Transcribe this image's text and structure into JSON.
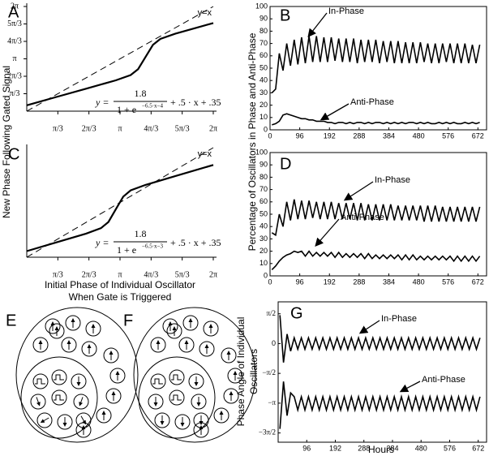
{
  "chart_data": [
    {
      "type": "line",
      "label": "A",
      "ylabel": "New Phase Following Gated Signal",
      "xlim": [
        0,
        6.2832
      ],
      "ylim": [
        0,
        6.2832
      ],
      "xticks": [
        {
          "value": 1.0472,
          "label": "π/3"
        },
        {
          "value": 2.0944,
          "label": "2π/3"
        },
        {
          "value": 3.1416,
          "label": "π"
        },
        {
          "value": 4.1888,
          "label": "4π/3"
        },
        {
          "value": 5.236,
          "label": "5π/3"
        },
        {
          "value": 6.2832,
          "label": "2π"
        }
      ],
      "yticks": [
        {
          "value": 1.0472,
          "label": "π/3"
        },
        {
          "value": 2.0944,
          "label": "2π/3"
        },
        {
          "value": 3.1416,
          "label": "π"
        },
        {
          "value": 4.1888,
          "label": "4π/3"
        },
        {
          "value": 5.236,
          "label": "5π/3"
        },
        {
          "value": 6.2832,
          "label": "2π"
        }
      ],
      "formula": {
        "lhs": "y =",
        "numerator": "1.8",
        "denominator": "1 + e",
        "exponent": "−6.5·x−4",
        "rest": "+ .5 · x + .35"
      },
      "series": [
        {
          "name": "y=x",
          "color": "#000000",
          "dash": true,
          "x": [
            0,
            6.2832
          ],
          "values": [
            0,
            6.2832
          ]
        },
        {
          "color": "#000000",
          "x": [
            0,
            1,
            2,
            3,
            3.5,
            3.75,
            4,
            4.25,
            4.5,
            5,
            5.5,
            6.2832
          ],
          "values": [
            0.35,
            0.85,
            1.35,
            1.853,
            2.167,
            2.521,
            3.25,
            3.979,
            4.333,
            4.649,
            4.9,
            5.29
          ]
        }
      ]
    },
    {
      "type": "line",
      "label": "C",
      "xlabel": [
        "Initial Phase of Individual Oscillator",
        "When Gate is Triggered"
      ],
      "xlim": [
        0,
        6.2832
      ],
      "ylim": [
        0,
        6.2832
      ],
      "xticks": [
        {
          "value": 1.0472,
          "label": "π/3"
        },
        {
          "value": 2.0944,
          "label": "2π/3"
        },
        {
          "value": 3.1416,
          "label": "π"
        },
        {
          "value": 4.1888,
          "label": "4π/3"
        },
        {
          "value": 5.236,
          "label": "5π/3"
        },
        {
          "value": 6.2832,
          "label": "2π"
        }
      ],
      "yticks": [],
      "formula": {
        "lhs": "y =",
        "numerator": "1.8",
        "denominator": "1 + e",
        "exponent": "−6.5·x−3",
        "rest": "+ .5 · x + .35"
      },
      "series": [
        {
          "name": "y=x",
          "color": "#000000",
          "dash": true,
          "x": [
            0,
            6.2832
          ],
          "values": [
            0,
            6.2832
          ]
        },
        {
          "color": "#000000",
          "x": [
            0,
            1,
            2,
            2.5,
            2.75,
            3,
            3.25,
            3.5,
            4,
            5,
            6.2832
          ],
          "values": [
            0.35,
            0.85,
            1.353,
            1.667,
            2.021,
            2.75,
            3.479,
            3.833,
            4.147,
            4.65,
            5.29
          ]
        }
      ]
    },
    {
      "type": "line",
      "label": "B",
      "ylabel": "Percentage of Oscillators in Phase and Anti-Phase",
      "xlim": [
        0,
        700
      ],
      "ylim": [
        0,
        100
      ],
      "xticks": [
        0,
        96,
        192,
        288,
        384,
        480,
        576,
        672
      ],
      "yticks": [
        0,
        10,
        20,
        30,
        40,
        50,
        60,
        70,
        80,
        90,
        100
      ],
      "annotations": [
        "In-Phase",
        "Anti-Phase"
      ],
      "x": [
        6,
        18,
        30,
        42,
        54,
        66,
        78,
        90,
        102,
        114,
        126,
        138,
        150,
        162,
        174,
        186,
        198,
        210,
        222,
        234,
        246,
        258,
        270,
        282,
        294,
        306,
        318,
        330,
        342,
        354,
        366,
        378,
        390,
        402,
        414,
        426,
        438,
        450,
        462,
        474,
        486,
        498,
        510,
        522,
        534,
        546,
        558,
        570,
        582,
        594,
        606,
        618,
        630,
        642,
        654,
        666,
        678
      ],
      "series": [
        {
          "color": "#000000",
          "values": [
            30,
            33,
            62,
            48,
            70,
            52,
            73,
            53,
            75,
            54,
            76,
            55,
            76,
            55,
            75,
            55,
            75,
            56,
            74,
            55,
            74,
            55,
            74,
            54,
            73,
            55,
            73,
            55,
            73,
            54,
            72,
            55,
            72,
            54,
            72,
            54,
            71,
            54,
            71,
            54,
            71,
            55,
            70,
            54,
            70,
            54,
            70,
            55,
            70,
            54,
            70,
            54,
            70,
            54,
            69,
            54,
            69
          ]
        },
        {
          "color": "#000000",
          "values": [
            4,
            5,
            7,
            12,
            13,
            12,
            11,
            10,
            9,
            9,
            8,
            8,
            7,
            7,
            7,
            6,
            6,
            5,
            6,
            6,
            5,
            6,
            5,
            6,
            6,
            5,
            6,
            5,
            6,
            6,
            5,
            6,
            5,
            6,
            5,
            6,
            5,
            6,
            6,
            5,
            6,
            5,
            6,
            5,
            5,
            6,
            5,
            6,
            5,
            6,
            5,
            5,
            6,
            5,
            6,
            5,
            6
          ]
        }
      ]
    },
    {
      "type": "line",
      "label": "D",
      "xlim": [
        0,
        700
      ],
      "ylim": [
        0,
        100
      ],
      "xticks": [
        0,
        96,
        192,
        288,
        384,
        480,
        576,
        672
      ],
      "yticks": [
        0,
        10,
        20,
        30,
        40,
        50,
        60,
        70,
        80,
        90,
        100
      ],
      "annotations": [
        "In-Phase",
        "Anti-Phase"
      ],
      "x": [
        6,
        18,
        30,
        42,
        54,
        66,
        78,
        90,
        102,
        114,
        126,
        138,
        150,
        162,
        174,
        186,
        198,
        210,
        222,
        234,
        246,
        258,
        270,
        282,
        294,
        306,
        318,
        330,
        342,
        354,
        366,
        378,
        390,
        402,
        414,
        426,
        438,
        450,
        462,
        474,
        486,
        498,
        510,
        522,
        534,
        546,
        558,
        570,
        582,
        594,
        606,
        618,
        630,
        642,
        654,
        666,
        678
      ],
      "series": [
        {
          "color": "#000000",
          "values": [
            35,
            33,
            50,
            40,
            60,
            45,
            62,
            46,
            61,
            46,
            61,
            47,
            60,
            46,
            60,
            46,
            60,
            46,
            59,
            46,
            59,
            46,
            59,
            45,
            59,
            45,
            58,
            45,
            58,
            45,
            58,
            45,
            58,
            45,
            57,
            45,
            57,
            45,
            57,
            45,
            57,
            44,
            57,
            44,
            57,
            44,
            56,
            44,
            56,
            44,
            56,
            44,
            56,
            44,
            56,
            44,
            56
          ]
        },
        {
          "color": "#000000",
          "values": [
            5,
            8,
            12,
            15,
            17,
            18,
            20,
            19,
            20,
            16,
            20,
            16,
            19,
            16,
            19,
            16,
            19,
            15,
            19,
            15,
            18,
            15,
            18,
            15,
            18,
            14,
            18,
            14,
            17,
            14,
            17,
            14,
            17,
            14,
            17,
            13,
            17,
            13,
            17,
            13,
            16,
            13,
            16,
            13,
            16,
            13,
            16,
            13,
            16,
            12,
            16,
            12,
            16,
            12,
            16,
            12,
            16
          ]
        }
      ]
    },
    {
      "type": "line",
      "label": "G",
      "ylabel": [
        "Phase Angle of Individual",
        "Oscillators"
      ],
      "xlabel": "Hours",
      "xlim": [
        0,
        700
      ],
      "ylim": [
        -5.2,
        2.2
      ],
      "xticks": [
        96,
        192,
        288,
        384,
        480,
        576,
        672
      ],
      "yticks": [
        {
          "value": 1.5708,
          "label": "π/2"
        },
        0,
        {
          "value": -1.5708,
          "label": "−π/2"
        },
        {
          "value": -3.1416,
          "label": "−π"
        },
        {
          "value": -4.7124,
          "label": "−3π/2"
        }
      ],
      "annotations": [
        "In-Phase",
        "Anti-Phase"
      ],
      "x": [
        6,
        18,
        30,
        42,
        54,
        66,
        78,
        90,
        102,
        114,
        126,
        138,
        150,
        162,
        174,
        186,
        198,
        210,
        222,
        234,
        246,
        258,
        270,
        282,
        294,
        306,
        318,
        330,
        342,
        354,
        366,
        378,
        390,
        402,
        414,
        426,
        438,
        450,
        462,
        474,
        486,
        498,
        510,
        522,
        534,
        546,
        558,
        570,
        582,
        594,
        606,
        618,
        630,
        642,
        654,
        666,
        678
      ],
      "series": [
        {
          "color": "#000000",
          "values": [
            1.5,
            -1.0,
            0.5,
            -0.4,
            0.3,
            -0.3,
            0.3,
            -0.3,
            0.3,
            -0.3,
            0.3,
            -0.3,
            0.3,
            -0.3,
            0.3,
            -0.3,
            0.3,
            -0.3,
            0.3,
            -0.3,
            0.3,
            -0.3,
            0.3,
            -0.3,
            0.3,
            -0.3,
            0.3,
            -0.3,
            0.3,
            -0.3,
            0.3,
            -0.3,
            0.3,
            -0.3,
            0.3,
            -0.3,
            0.3,
            -0.3,
            0.3,
            -0.3,
            0.3,
            -0.3,
            0.3,
            -0.3,
            0.3,
            -0.3,
            0.3,
            -0.3,
            0.3,
            -0.3,
            0.3,
            -0.3,
            0.3,
            -0.3,
            0.3,
            -0.3,
            0.3
          ]
        },
        {
          "color": "#000000",
          "values": [
            -4.5,
            -2.0,
            -3.8,
            -2.6,
            -2.8,
            -3.5,
            -2.8,
            -3.5,
            -2.8,
            -3.5,
            -2.8,
            -3.5,
            -2.8,
            -3.5,
            -2.8,
            -3.5,
            -2.8,
            -3.5,
            -2.8,
            -3.5,
            -2.8,
            -3.5,
            -2.8,
            -3.5,
            -2.8,
            -3.5,
            -2.8,
            -3.5,
            -2.8,
            -3.5,
            -2.8,
            -3.5,
            -2.8,
            -3.5,
            -2.8,
            -3.5,
            -2.8,
            -3.5,
            -2.8,
            -3.5,
            -2.8,
            -3.5,
            -2.8,
            -3.5,
            -2.8,
            -3.5,
            -2.8,
            -3.5,
            -2.8,
            -3.5,
            -2.8,
            -3.5,
            -2.8,
            -3.5,
            -2.8,
            -3.5,
            -2.8
          ]
        }
      ]
    }
  ],
  "diagrams": [
    {
      "label": "E"
    },
    {
      "label": "F"
    }
  ]
}
